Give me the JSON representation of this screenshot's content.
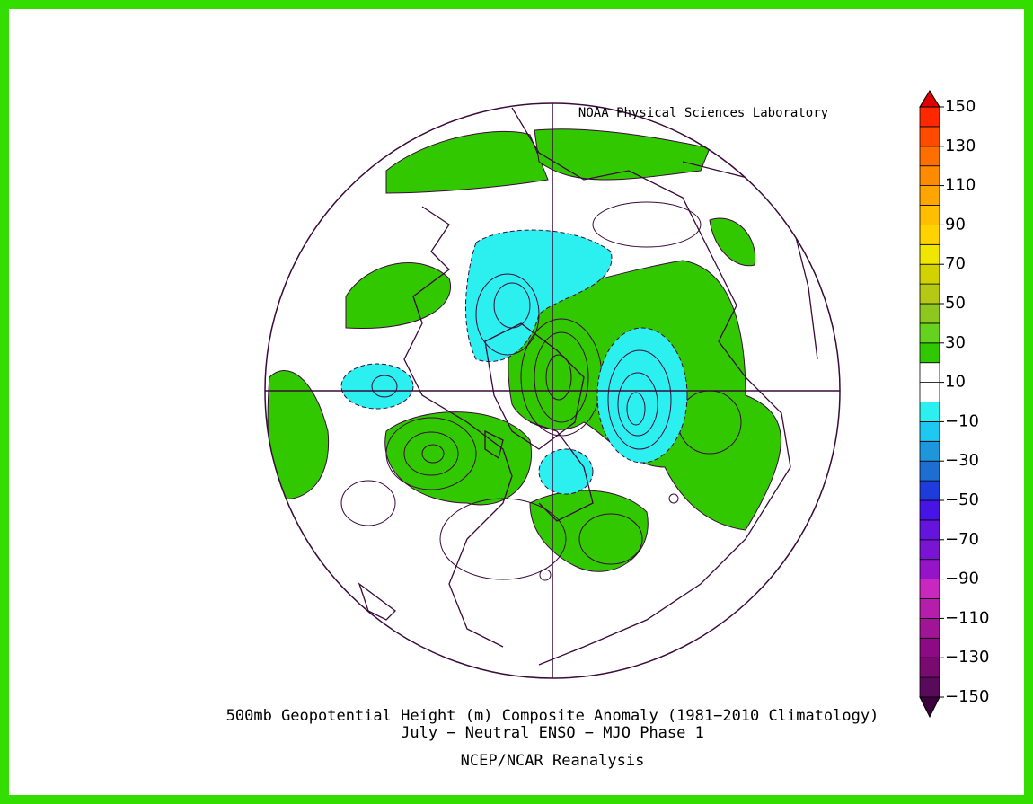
{
  "credit": "NOAA Physical Sciences Laboratory",
  "title": [
    "500mb Geopotential Height (m) Composite Anomaly (1981−2010 Climatology)",
    "July − Neutral ENSO − MJO Phase 1"
  ],
  "source": "NCEP/NCAR Reanalysis",
  "colorbar": {
    "range": [
      -150,
      150
    ],
    "step": 10,
    "ticks": [
      150,
      130,
      110,
      90,
      70,
      50,
      30,
      10,
      {
        "value": -10,
        "label": "−10"
      },
      {
        "value": -30,
        "label": "−30"
      },
      {
        "value": -50,
        "label": "−50"
      },
      {
        "value": -70,
        "label": "−70"
      },
      {
        "value": -90,
        "label": "−90"
      },
      {
        "value": -110,
        "label": "−110"
      },
      {
        "value": -130,
        "label": "−130"
      },
      {
        "value": -150,
        "label": "−150"
      }
    ],
    "colors": [
      "#5a0a5a",
      "#780a70",
      "#8c0a84",
      "#a01496",
      "#b41eaa",
      "#c828be",
      "#9614c8",
      "#7814d2",
      "#6414dc",
      "#4614e6",
      "#1e3cdc",
      "#1e6ed2",
      "#1e96dc",
      "#1ec8f0",
      "#2cf0f0",
      "#ffffff",
      "#ffffff",
      "#32c800",
      "#64d21e",
      "#8cc81e",
      "#b4c814",
      "#d2d200",
      "#f0e600",
      "#ffd200",
      "#ffbe00",
      "#ffa500",
      "#ff8c00",
      "#ff6e00",
      "#ff4b00",
      "#ff2800"
    ],
    "under": "#3c003c",
    "over": "#dc0000"
  }
}
